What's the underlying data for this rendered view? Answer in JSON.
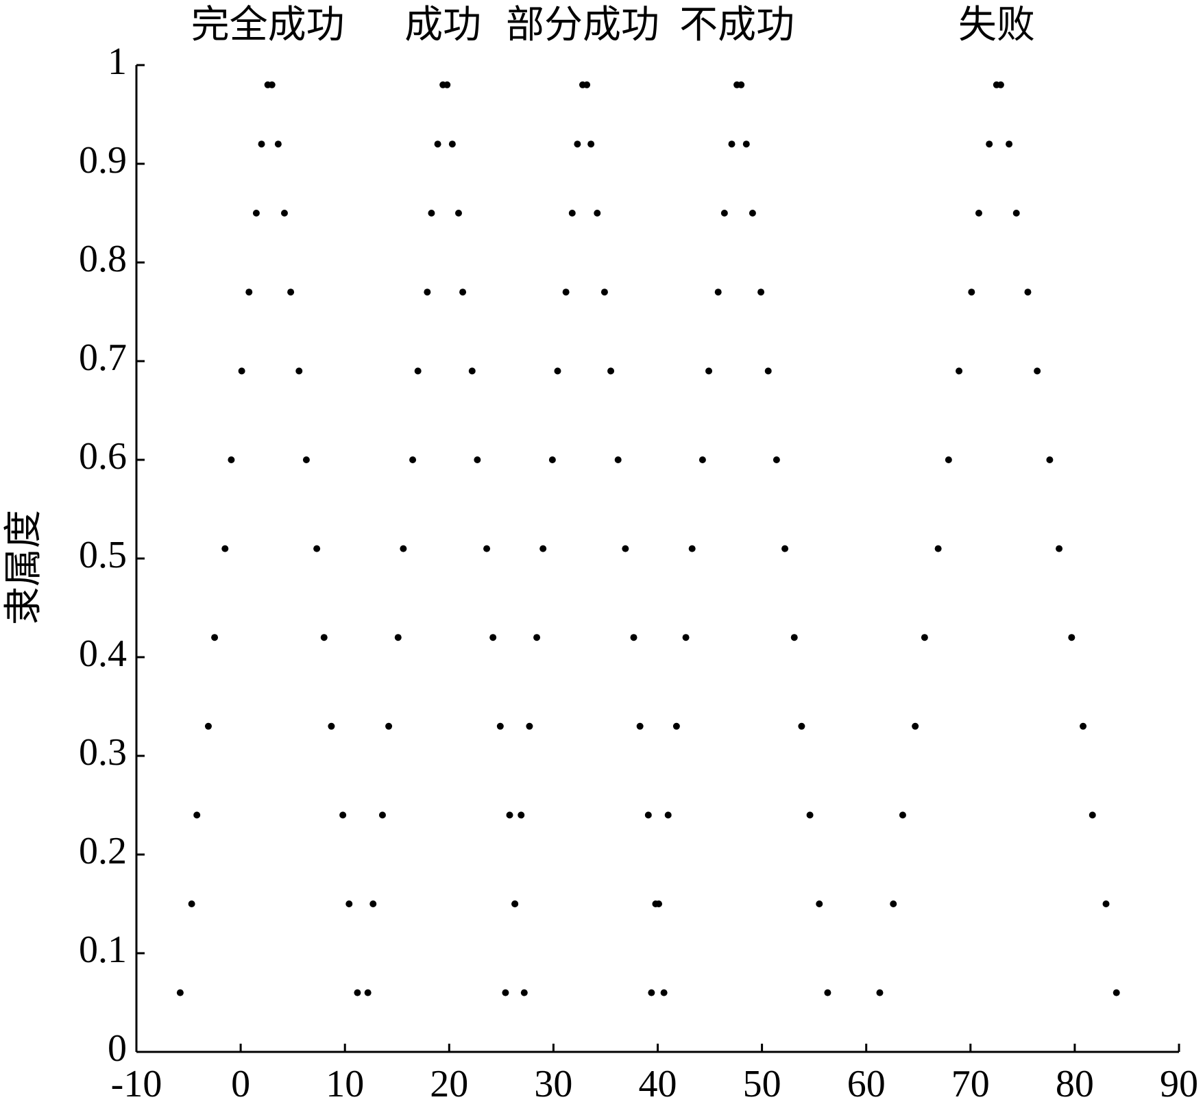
{
  "chart_data": {
    "type": "scatter",
    "y_label": "隶属度",
    "xlim": [
      -10,
      90
    ],
    "xticks": [
      -10,
      0,
      10,
      20,
      30,
      40,
      50,
      60,
      70,
      80,
      90
    ],
    "ylim": [
      0,
      1
    ],
    "yticks": [
      0,
      0.1,
      0.2,
      0.3,
      0.4,
      0.5,
      0.6,
      0.7,
      0.8,
      0.9,
      1
    ],
    "series": [
      {
        "name": "完全成功",
        "color": "#000000",
        "x": [
          2.6,
          2.0,
          1.5,
          0.8,
          0.1,
          -0.9,
          -1.5,
          -2.5,
          -3.1,
          -4.2,
          -4.7,
          -5.8,
          3.0,
          3.6,
          4.2,
          4.8,
          5.6,
          6.3,
          7.3,
          8.0,
          8.7,
          9.8,
          10.4,
          11.2
        ],
        "values": [
          0.98,
          0.92,
          0.85,
          0.77,
          0.69,
          0.6,
          0.51,
          0.42,
          0.33,
          0.24,
          0.15,
          0.06,
          0.98,
          0.92,
          0.85,
          0.77,
          0.69,
          0.6,
          0.51,
          0.42,
          0.33,
          0.24,
          0.15,
          0.06
        ]
      },
      {
        "name": "成功",
        "color": "#000000",
        "x": [
          19.4,
          18.9,
          18.3,
          17.9,
          17.0,
          16.5,
          15.6,
          15.1,
          14.2,
          13.6,
          12.7,
          12.2,
          19.8,
          20.3,
          20.9,
          21.3,
          22.2,
          22.7,
          23.6,
          24.2,
          24.9,
          25.8,
          26.3,
          27.2
        ],
        "values": [
          0.98,
          0.92,
          0.85,
          0.77,
          0.69,
          0.6,
          0.51,
          0.42,
          0.33,
          0.24,
          0.15,
          0.06,
          0.98,
          0.92,
          0.85,
          0.77,
          0.69,
          0.6,
          0.51,
          0.42,
          0.33,
          0.24,
          0.15,
          0.06
        ]
      },
      {
        "name": "部分成功",
        "color": "#000000",
        "x": [
          32.8,
          32.3,
          31.8,
          31.2,
          30.4,
          29.9,
          29.0,
          28.4,
          27.7,
          26.9,
          26.3,
          25.4,
          33.2,
          33.6,
          34.2,
          34.9,
          35.5,
          36.2,
          36.9,
          37.7,
          38.3,
          39.1,
          39.8,
          40.6
        ],
        "values": [
          0.98,
          0.92,
          0.85,
          0.77,
          0.69,
          0.6,
          0.51,
          0.42,
          0.33,
          0.24,
          0.15,
          0.06,
          0.98,
          0.92,
          0.85,
          0.77,
          0.69,
          0.6,
          0.51,
          0.42,
          0.33,
          0.24,
          0.15,
          0.06
        ]
      },
      {
        "name": "不成功",
        "color": "#000000",
        "x": [
          47.6,
          47.1,
          46.4,
          45.8,
          44.9,
          44.3,
          43.3,
          42.7,
          41.8,
          41.0,
          40.1,
          39.4,
          48.0,
          48.5,
          49.1,
          49.9,
          50.6,
          51.4,
          52.2,
          53.1,
          53.8,
          54.6,
          55.5,
          56.3
        ],
        "values": [
          0.98,
          0.92,
          0.85,
          0.77,
          0.69,
          0.6,
          0.51,
          0.42,
          0.33,
          0.24,
          0.15,
          0.06,
          0.98,
          0.92,
          0.85,
          0.77,
          0.69,
          0.6,
          0.51,
          0.42,
          0.33,
          0.24,
          0.15,
          0.06
        ]
      },
      {
        "name": "失败",
        "color": "#000000",
        "x": [
          72.5,
          71.8,
          70.8,
          70.1,
          68.9,
          67.9,
          66.9,
          65.6,
          64.7,
          63.5,
          62.6,
          61.3,
          72.9,
          73.7,
          74.4,
          75.5,
          76.4,
          77.6,
          78.5,
          79.7,
          80.8,
          81.7,
          83.0,
          84.0
        ],
        "values": [
          0.98,
          0.92,
          0.85,
          0.77,
          0.69,
          0.6,
          0.51,
          0.42,
          0.33,
          0.24,
          0.15,
          0.06,
          0.98,
          0.92,
          0.85,
          0.77,
          0.69,
          0.6,
          0.51,
          0.42,
          0.33,
          0.24,
          0.15,
          0.06
        ]
      }
    ]
  }
}
